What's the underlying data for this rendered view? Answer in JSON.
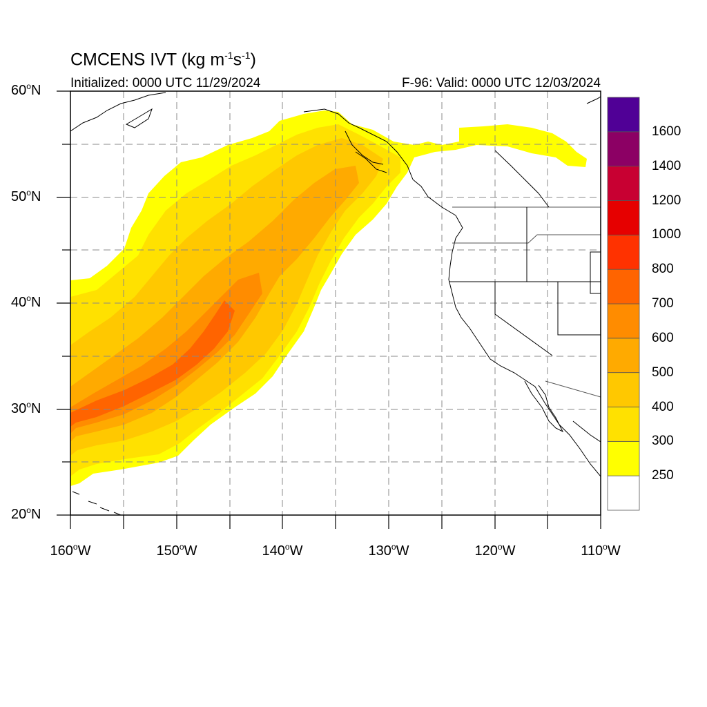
{
  "title": {
    "prefix": "CMCENS IVT (kg m",
    "exp1": "-1",
    "mid": "s",
    "exp2": "-1",
    "suffix": ")"
  },
  "init_text": "Initialized: 0000 UTC 11/29/2024",
  "valid_text": "F-96: Valid: 0000 UTC 12/03/2024",
  "map": {
    "lon_range": [
      -160,
      -110
    ],
    "lat_range": [
      20,
      60
    ],
    "lat_labels": [
      {
        "deg": "60",
        "hemi": "N"
      },
      {
        "deg": "50",
        "hemi": "N"
      },
      {
        "deg": "40",
        "hemi": "N"
      },
      {
        "deg": "30",
        "hemi": "N"
      },
      {
        "deg": "20",
        "hemi": "N"
      }
    ],
    "lon_labels": [
      {
        "deg": "160",
        "hemi": "W"
      },
      {
        "deg": "150",
        "hemi": "W"
      },
      {
        "deg": "140",
        "hemi": "W"
      },
      {
        "deg": "130",
        "hemi": "W"
      },
      {
        "deg": "120",
        "hemi": "W"
      },
      {
        "deg": "110",
        "hemi": "W"
      }
    ],
    "gridlines": "dashed, every 5 degrees"
  },
  "colorbar": {
    "levels": [
      "250",
      "300",
      "400",
      "500",
      "600",
      "700",
      "800",
      "1000",
      "1200",
      "1400",
      "1600"
    ],
    "colors": [
      "#ffffff",
      "#ffff00",
      "#ffe100",
      "#ffc800",
      "#ffaa00",
      "#ff8c00",
      "#ff6400",
      "#ff3200",
      "#e60000",
      "#c80032",
      "#8c0064",
      "#500096"
    ]
  }
}
